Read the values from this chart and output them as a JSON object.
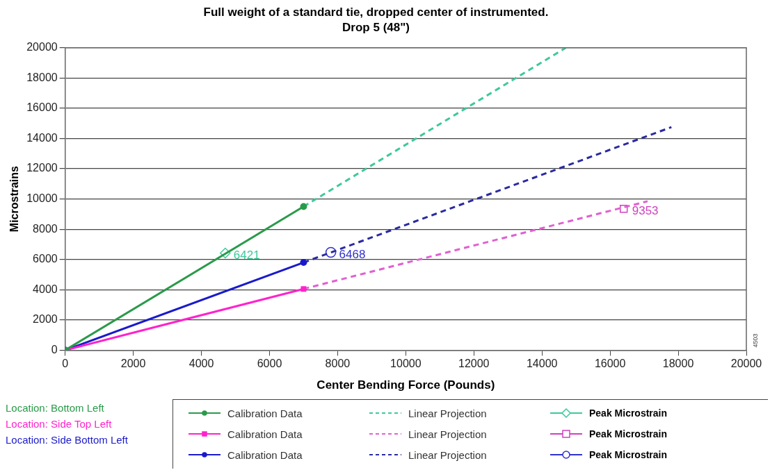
{
  "chart_data": {
    "type": "line",
    "title": "Full weight of a standard tie, dropped center of instrumented.",
    "subtitle": "Drop 5 (48\")",
    "xlabel": "Center Bending Force (Pounds)",
    "ylabel": "Microstrains",
    "xlim": [
      0,
      20000
    ],
    "xticks": [
      0,
      2000,
      4000,
      6000,
      8000,
      10000,
      12000,
      14000,
      16000,
      18000,
      20000
    ],
    "ylim": [
      0,
      20000
    ],
    "yticks": [
      0,
      2000,
      4000,
      6000,
      8000,
      10000,
      12000,
      14000,
      16000,
      18000,
      20000
    ],
    "grid": "y",
    "legend": "bottom",
    "annotations": [
      "Location: Bottom Left",
      "Location: Side Top Left",
      "Location: Side Bottom Left",
      "4503"
    ],
    "series": [
      {
        "name": "Calibration Data",
        "type": "line",
        "color": "#2a9a4a",
        "x": [
          0,
          7000
        ],
        "values": [
          0,
          9500
        ],
        "marker": "circle",
        "line_style": "solid"
      },
      {
        "name": "Calibration Data",
        "type": "line",
        "color": "#ff22cc",
        "x": [
          0,
          7000
        ],
        "values": [
          0,
          4050
        ],
        "marker": "square",
        "line_style": "solid"
      },
      {
        "name": "Calibration Data",
        "type": "line",
        "color": "#1a1acc",
        "x": [
          0,
          7000
        ],
        "values": [
          0,
          5800
        ],
        "marker": "circle",
        "line_style": "solid"
      },
      {
        "name": "Linear Projection",
        "type": "line",
        "color": "#3cc99a",
        "x": [
          7000,
          14700
        ],
        "values": [
          9500,
          20000
        ],
        "marker": "none",
        "line_style": "dashed"
      },
      {
        "name": "Linear Projection",
        "type": "line",
        "color": "#e060d0",
        "x": [
          7000,
          17100
        ],
        "values": [
          4050,
          9850
        ],
        "marker": "none",
        "line_style": "dashed"
      },
      {
        "name": "Linear Projection",
        "type": "line",
        "color": "#2a2aa0",
        "x": [
          7000,
          17800
        ],
        "values": [
          5800,
          14750
        ],
        "marker": "none",
        "line_style": "dashed"
      },
      {
        "name": "Peak Microstrain",
        "type": "scatter",
        "color": "#3cc99a",
        "x": [
          4700
        ],
        "values": [
          6421
        ],
        "marker": "diamond",
        "value_labels": [
          "6421"
        ]
      },
      {
        "name": "Peak Microstrain",
        "type": "scatter",
        "color": "#d040c0",
        "x": [
          16400
        ],
        "values": [
          9353
        ],
        "marker": "square",
        "value_labels": [
          "9353"
        ]
      },
      {
        "name": "Peak Microstrain",
        "type": "scatter",
        "color": "#3030cc",
        "x": [
          7800
        ],
        "values": [
          6468
        ],
        "marker": "circle",
        "value_labels": [
          "6468"
        ]
      }
    ]
  }
}
